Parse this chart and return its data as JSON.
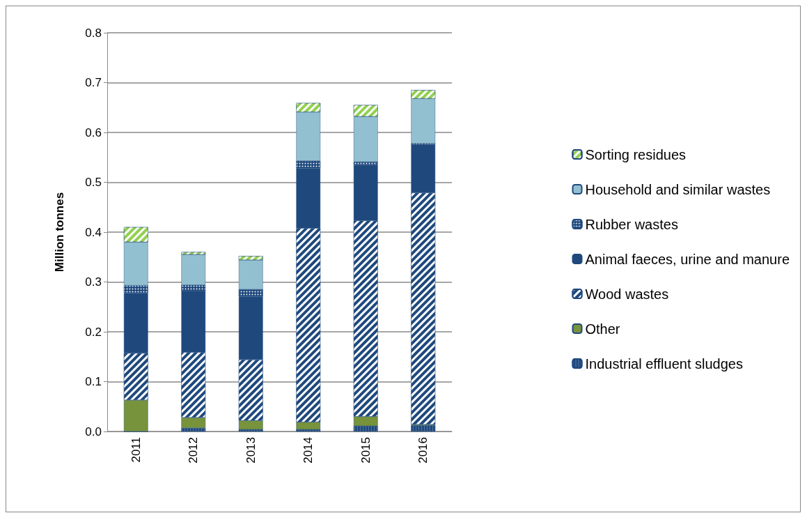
{
  "chart_data": {
    "type": "bar",
    "stacked": true,
    "ylabel": "Million tonnes",
    "categories": [
      "2011",
      "2012",
      "2013",
      "2014",
      "2015",
      "2016"
    ],
    "series": [
      {
        "name": "Industrial effluent sludges",
        "color": "#1f497d",
        "values": [
          0,
          0.007,
          0.004,
          0.004,
          0.011,
          0.012
        ]
      },
      {
        "name": "Other",
        "color": "#77933c",
        "values": [
          0.063,
          0.021,
          0.018,
          0.015,
          0.019,
          0.002
        ]
      },
      {
        "name": "Wood wastes",
        "color": "#1f497d",
        "values": [
          0.094,
          0.131,
          0.122,
          0.389,
          0.393,
          0.465
        ]
      },
      {
        "name": "Animal faeces, urine and manure",
        "color": "#1f497d",
        "values": [
          0.121,
          0.123,
          0.127,
          0.12,
          0.112,
          0.097
        ]
      },
      {
        "name": "Rubber wastes",
        "color": "#1f497d",
        "values": [
          0.015,
          0.012,
          0.014,
          0.015,
          0.006,
          0.002
        ]
      },
      {
        "name": "Household and similar wastes",
        "color": "#93c0d0",
        "values": [
          0.087,
          0.061,
          0.059,
          0.098,
          0.091,
          0.09
        ]
      },
      {
        "name": "Sorting residues",
        "color": "#92d050",
        "values": [
          0.03,
          0.005,
          0.008,
          0.018,
          0.023,
          0.017
        ]
      }
    ],
    "ylim": [
      0,
      0.8
    ],
    "yticks": [
      {
        "value": 0,
        "label": "0.0"
      },
      0.1,
      0.2,
      0.3,
      0.4,
      0.5,
      0.6,
      0.7,
      0.8
    ],
    "grid": "y",
    "legend": "right"
  }
}
